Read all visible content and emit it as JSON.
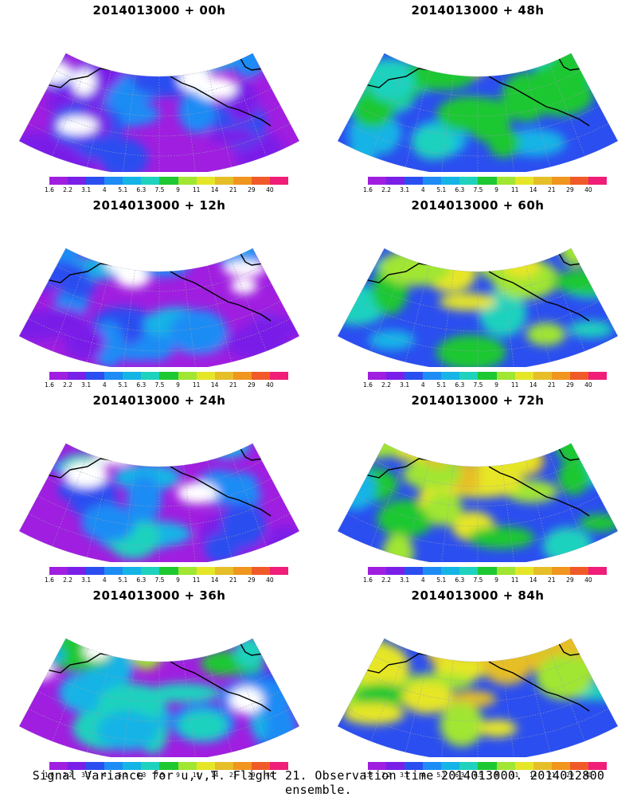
{
  "panels": [
    {
      "title": "2014013000 + 00h",
      "intensity": 0.15
    },
    {
      "title": "2014013000 + 48h",
      "intensity": 0.55
    },
    {
      "title": "2014013000 + 12h",
      "intensity": 0.2
    },
    {
      "title": "2014013000 + 60h",
      "intensity": 0.6
    },
    {
      "title": "2014013000 + 24h",
      "intensity": 0.3
    },
    {
      "title": "2014013000 + 72h",
      "intensity": 0.7
    },
    {
      "title": "2014013000 + 36h",
      "intensity": 0.45
    },
    {
      "title": "2014013000 + 84h",
      "intensity": 0.8
    }
  ],
  "colorbar": {
    "labels": [
      "1.6",
      "2.2",
      "3.1",
      "4",
      "5.1",
      "6.3",
      "7.5",
      "9",
      "11",
      "14",
      "21",
      "29",
      "40"
    ],
    "colors": [
      "#a01ee0",
      "#7a1fe8",
      "#2b4ef0",
      "#1e8cf5",
      "#14b4e6",
      "#1ed2be",
      "#1ec832",
      "#a0e632",
      "#e6e628",
      "#e6be28",
      "#f0961e",
      "#f05a28",
      "#f01e78"
    ]
  },
  "caption": "Signal Variance for u,v,T. Flight 21. Observation time 2014013000. 2014012800 ensemble."
}
